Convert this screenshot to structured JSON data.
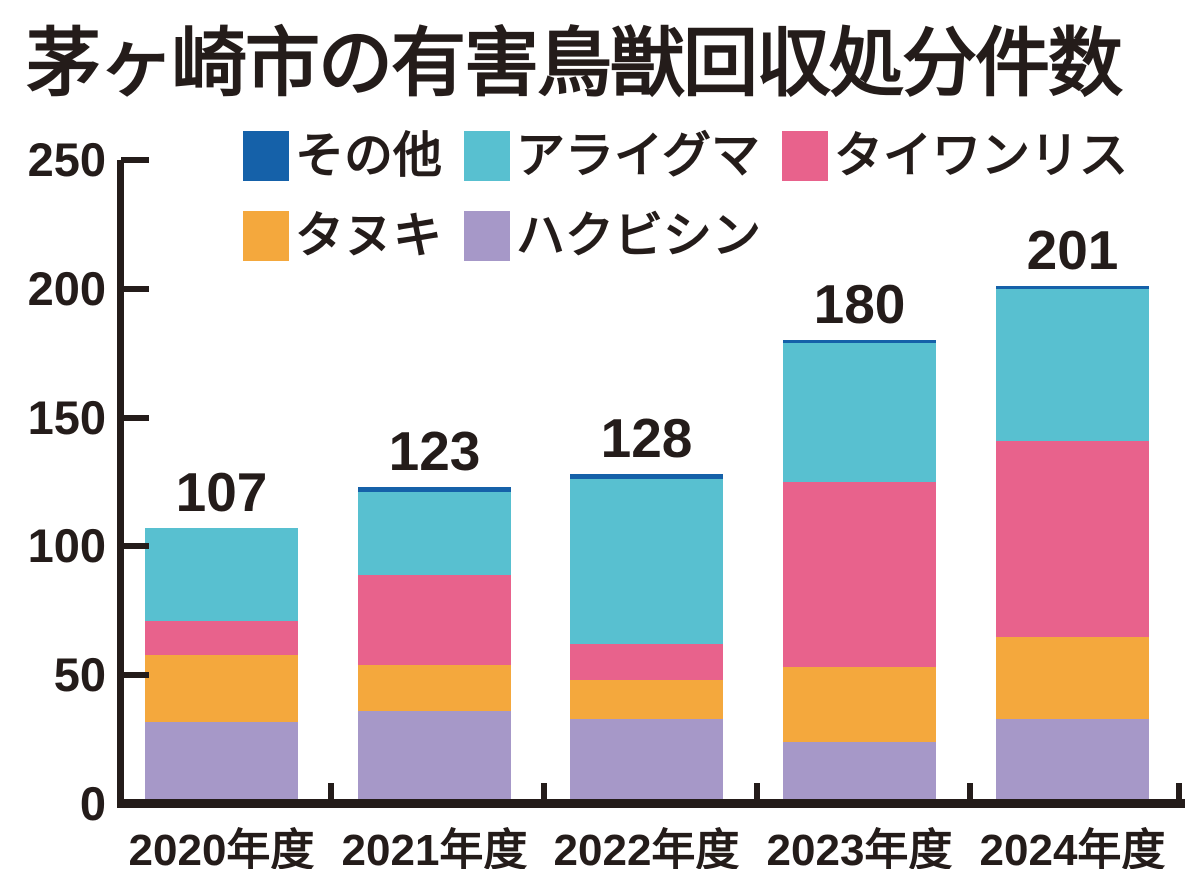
{
  "chart_data": {
    "type": "bar",
    "stacked": true,
    "title": "茅ヶ崎市の有害鳥獣回収処分件数",
    "categories": [
      "2020年度",
      "2021年度",
      "2022年度",
      "2023年度",
      "2024年度"
    ],
    "series": [
      {
        "name": "その他",
        "color": "#1561a9",
        "values": [
          0,
          2,
          2,
          1,
          1
        ]
      },
      {
        "name": "アライグマ",
        "color": "#58c0d0",
        "values": [
          36,
          32,
          64,
          54,
          59
        ]
      },
      {
        "name": "タイワンリス",
        "color": "#e8628c",
        "values": [
          13,
          35,
          14,
          72,
          76
        ]
      },
      {
        "name": "タヌキ",
        "color": "#f4a83d",
        "values": [
          26,
          18,
          15,
          29,
          32
        ]
      },
      {
        "name": "ハクビシン",
        "color": "#a698c8",
        "values": [
          32,
          36,
          33,
          24,
          33
        ]
      }
    ],
    "totals": [
      107,
      123,
      128,
      180,
      201
    ],
    "xlabel": "",
    "ylabel": "",
    "y_axis": {
      "min": 0,
      "max": 250,
      "ticks": [
        0,
        50,
        100,
        150,
        200,
        250
      ]
    },
    "legend_position": "top",
    "legend_rows": [
      3,
      2
    ],
    "grid": false,
    "colors": {
      "ink": "#241c1a",
      "background": "#ffffff"
    }
  }
}
